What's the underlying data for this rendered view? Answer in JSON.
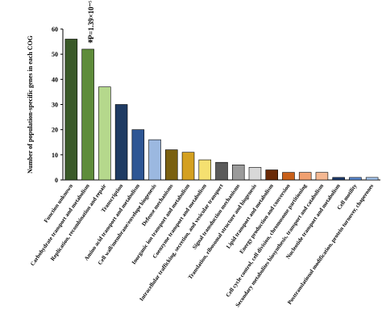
{
  "chart_data": {
    "type": "bar",
    "ylabel": "Number of population-specific genes in each COG",
    "xlabel": "",
    "ylim": [
      0,
      60
    ],
    "yticks": [
      0,
      10,
      20,
      30,
      40,
      50,
      60
    ],
    "grid": false,
    "categories": [
      "Function unknown",
      "Carbohydrate transport and metabolism",
      "Replication, recombination and repair",
      "Transcription",
      "Amino acid transport and metabolism",
      "Cell wall/membrane/envelope biogenesis",
      "Defense mechanisms",
      "Inorganic ion transport and metabolism",
      "Coenzyme transport and metabolism",
      "Intracellular trafficking, secretion, and vesicular transport",
      "Signal transduction mechanisms",
      "Translation, ribosomal structure and biogenesis",
      "Lipid transport and metabolism",
      "Energy production and conversion",
      "Cell cycle control, cell division, chromosome partitioning",
      "Secondary metabolites biosynthesis, transport and catabolism",
      "Nucleotide transport and metabolism",
      "Cell motility",
      "Posttranslational modification, protein turnover, chaperones"
    ],
    "values": [
      56,
      52,
      37,
      30,
      20,
      16,
      12,
      11,
      8,
      7,
      6,
      5,
      4,
      3,
      3,
      3,
      1,
      1,
      1
    ],
    "colors": [
      "#3a5a28",
      "#5e8c3a",
      "#b5d88c",
      "#1f3b63",
      "#2e5694",
      "#9bb8e0",
      "#7a6010",
      "#d4a020",
      "#f5e070",
      "#5a5a5a",
      "#9a9a9a",
      "#d8d8d8",
      "#6a2a08",
      "#c8601a",
      "#f0a070",
      "#f5b892",
      "#1e3c6e",
      "#5a8ad0",
      "#a8c8f0"
    ],
    "annotation": {
      "category": "Carbohydrate transport and metabolism",
      "marker": "*",
      "text": "P=1.39×10⁻⁵"
    }
  }
}
